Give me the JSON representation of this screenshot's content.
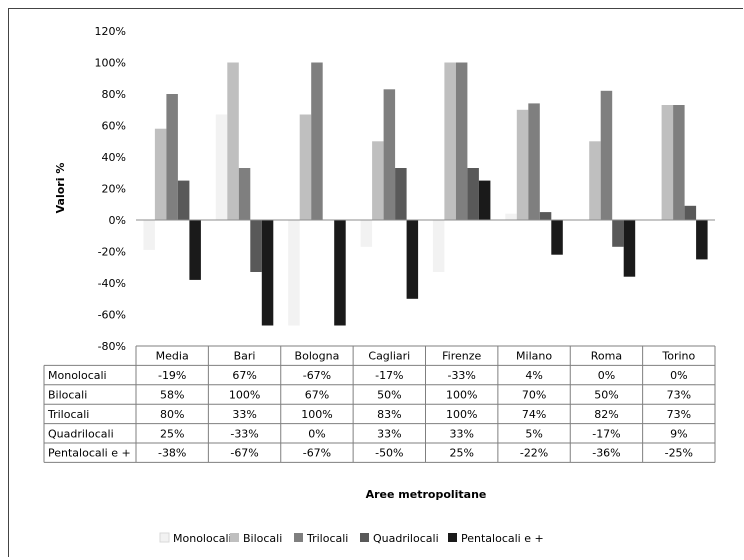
{
  "chart_data": {
    "type": "bar",
    "categories": [
      "Media",
      "Bari",
      "Bologna",
      "Cagliari",
      "Firenze",
      "Milano",
      "Roma",
      "Torino"
    ],
    "series": [
      {
        "name": "Monolocali",
        "color": "#f2f2f2",
        "values": [
          -19,
          67,
          -67,
          -17,
          -33,
          4,
          0,
          0
        ],
        "labels": [
          "-19%",
          "67%",
          "-67%",
          "-17%",
          "-33%",
          "4%",
          "0%",
          "0%"
        ]
      },
      {
        "name": "Bilocali",
        "color": "#bfbfbf",
        "values": [
          58,
          100,
          67,
          50,
          100,
          70,
          50,
          73
        ],
        "labels": [
          "58%",
          "100%",
          "67%",
          "50%",
          "100%",
          "70%",
          "50%",
          "73%"
        ]
      },
      {
        "name": "Trilocali",
        "color": "#7f7f7f",
        "values": [
          80,
          33,
          100,
          83,
          100,
          74,
          82,
          73
        ],
        "labels": [
          "80%",
          "33%",
          "100%",
          "83%",
          "100%",
          "74%",
          "82%",
          "73%"
        ]
      },
      {
        "name": "Quadrilocali",
        "color": "#595959",
        "values": [
          25,
          -33,
          0,
          33,
          33,
          5,
          -17,
          9
        ],
        "labels": [
          "25%",
          "-33%",
          "0%",
          "33%",
          "33%",
          "5%",
          "-17%",
          "9%"
        ]
      },
      {
        "name": "Pentalocali e +",
        "color": "#1a1a1a",
        "values": [
          -38,
          -67,
          -67,
          -50,
          25,
          -22,
          -36,
          -25
        ],
        "labels": [
          "-38%",
          "-67%",
          "-67%",
          "-50%",
          "25%",
          "-22%",
          "-36%",
          "-25%"
        ]
      }
    ],
    "ylim": [
      -80,
      120
    ],
    "yticks": [
      -80,
      -60,
      -40,
      -20,
      0,
      20,
      40,
      60,
      80,
      100,
      120
    ],
    "ytick_labels": [
      "-80%",
      "-60%",
      "-40%",
      "-20%",
      "0%",
      "20%",
      "40%",
      "60%",
      "80%",
      "100%",
      "120%"
    ],
    "ylabel": "Valori %",
    "xlabel": "Aree metropolitane",
    "legend_position": "bottom",
    "grid": false,
    "has_data_table": true
  }
}
